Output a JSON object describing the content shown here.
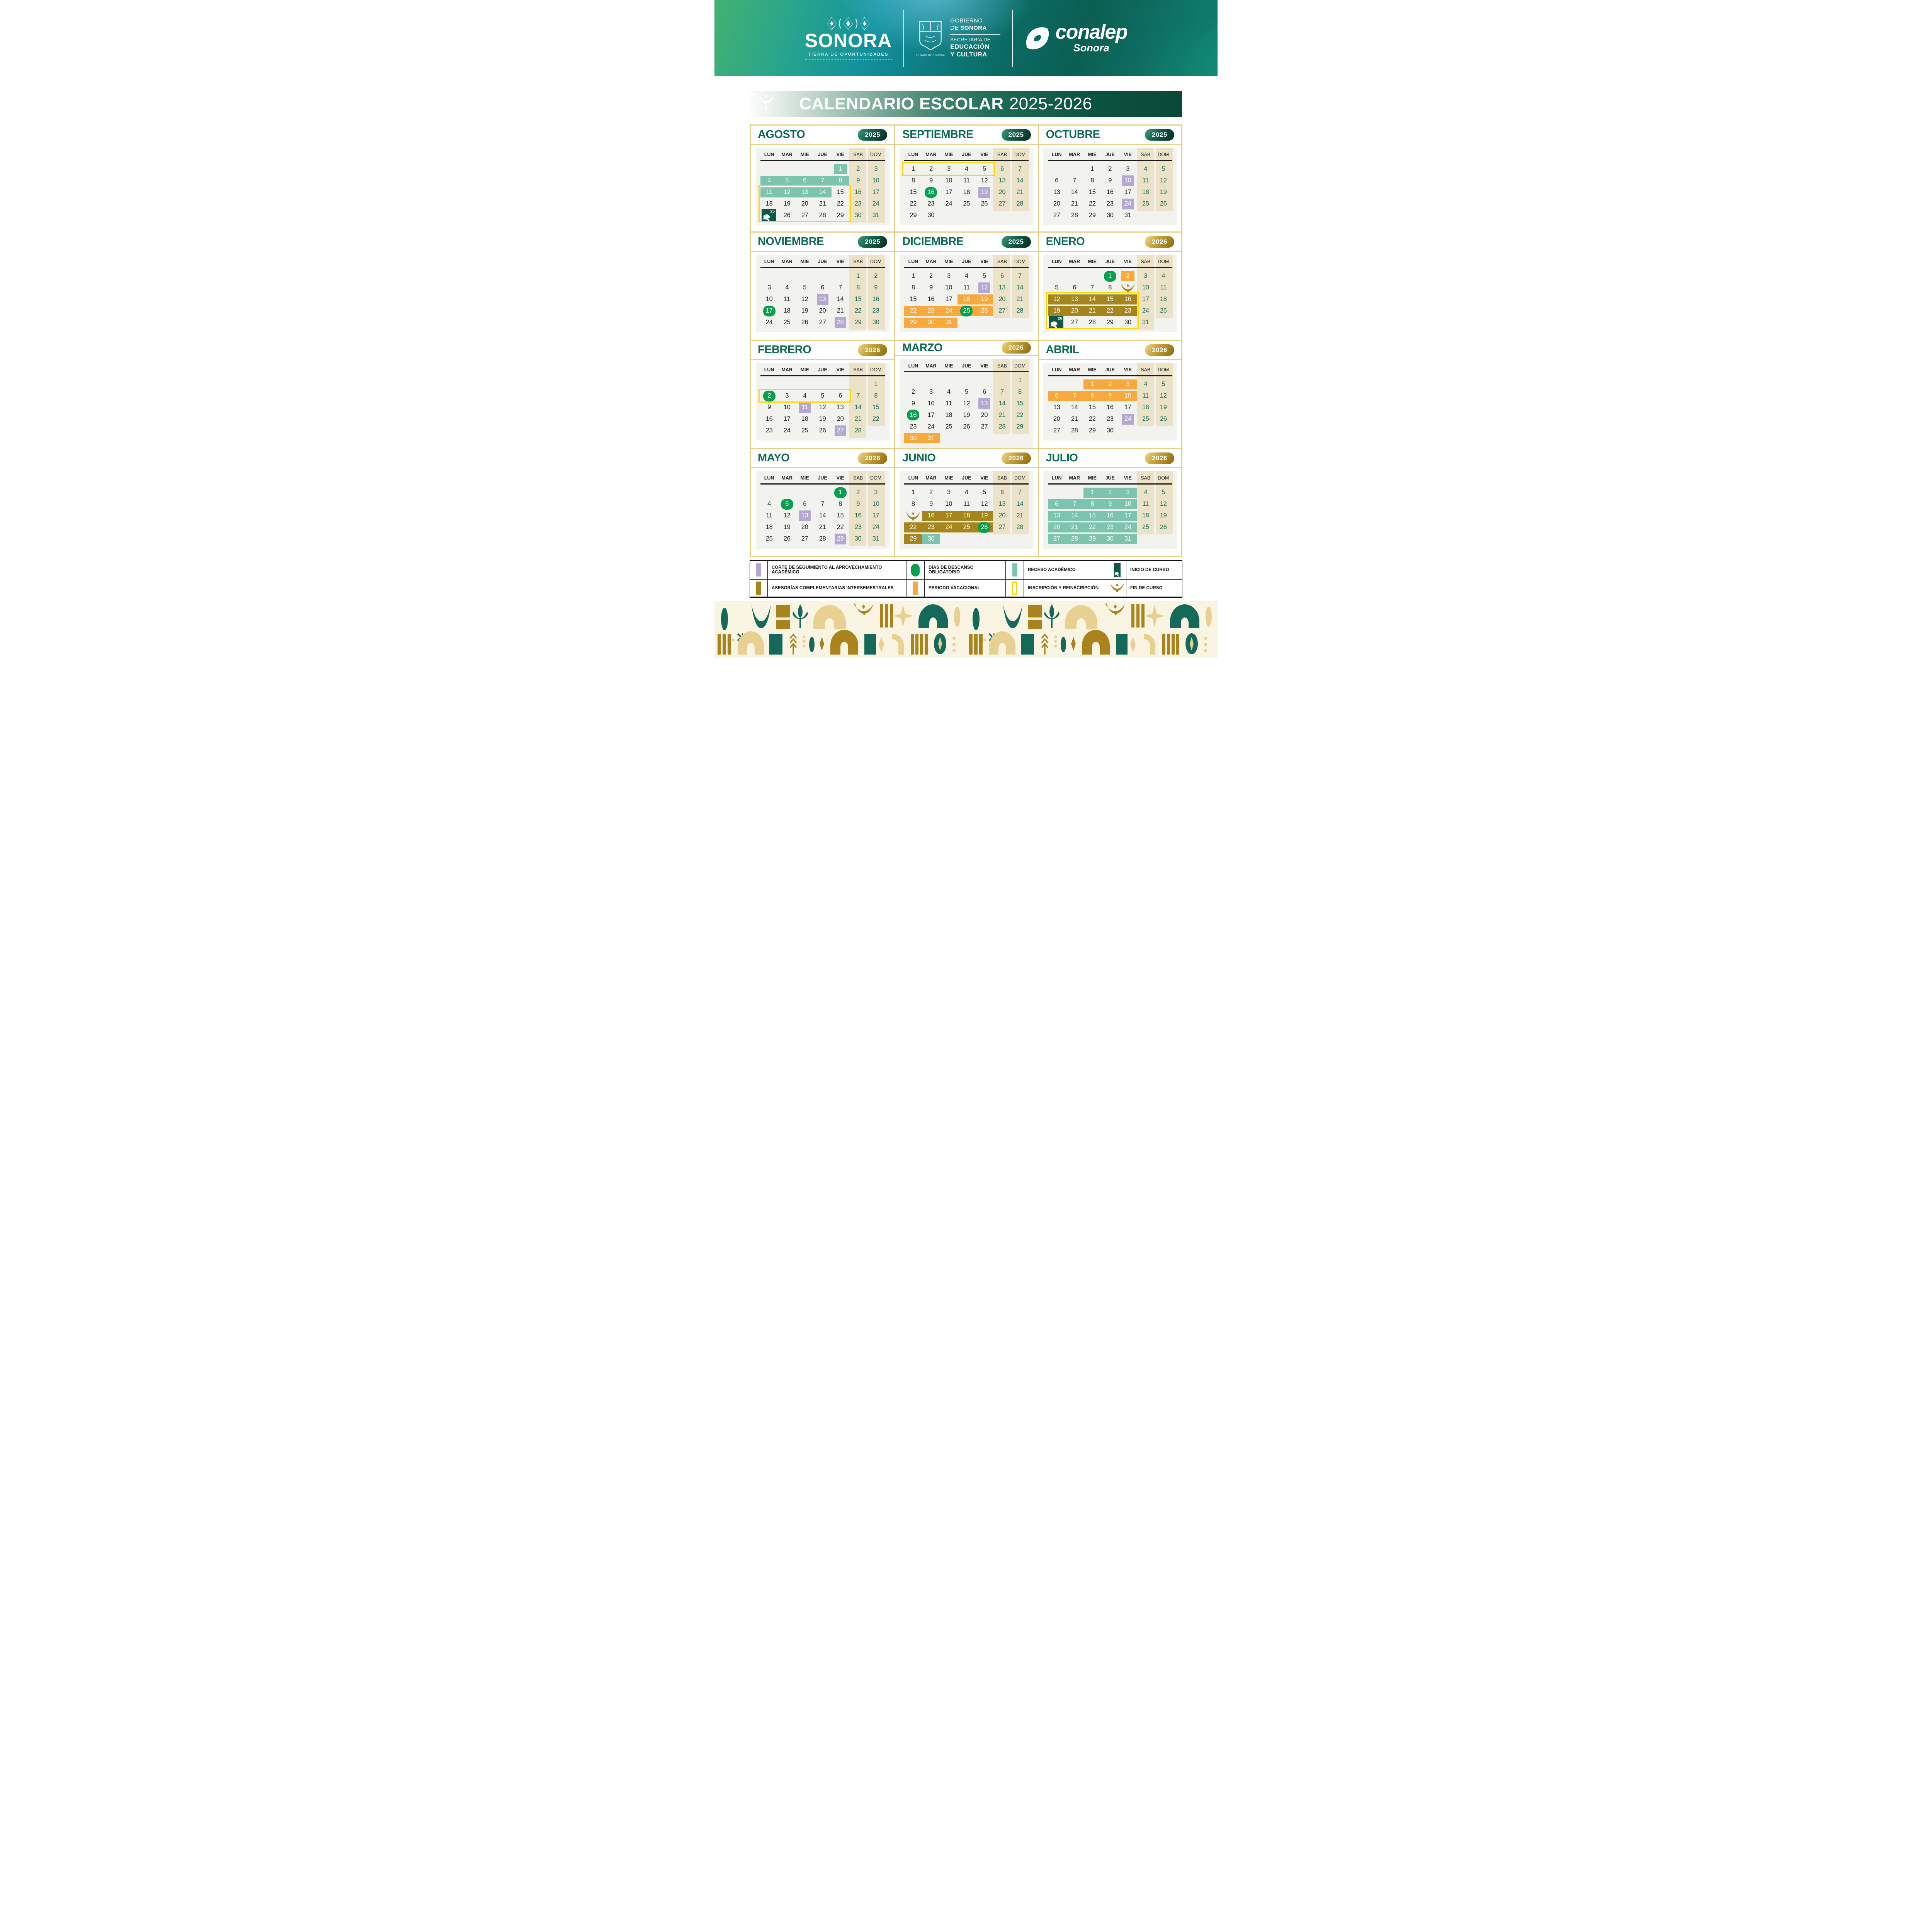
{
  "brand": {
    "sonora_title": "SONORA",
    "sonora_tagline_light": "TIERRA DE ",
    "sonora_tagline_bold": "OPORTUNIDADES",
    "gov_line1": "GOBIERNO",
    "gov_line2_light": "DE ",
    "gov_line2_bold": "SONORA",
    "gov_line3": "SECRETARÍA DE",
    "gov_line4": "EDUCACIÓN",
    "gov_line5": "Y CULTURA",
    "seal_caption": "ESTADO DE SONORA",
    "conalep": "conalep",
    "conalep_sub": "Sonora"
  },
  "banner": {
    "title": "CALENDARIO ESCOLAR",
    "years": "2025-2026"
  },
  "weekdays": [
    "LUN",
    "MAR",
    "MIE",
    "JUE",
    "VIE",
    "SAB",
    "DOM"
  ],
  "colors": {
    "teal": "#7cc4ad",
    "orange": "#f7a93d",
    "gold": "#a5851c",
    "purple": "#b5a7d4",
    "pill_green": "#0a9e4f",
    "inicio_green": "#0d5848",
    "yellow": "#ffd60a",
    "weekend_text": "#17705a",
    "month_title": "#0b6b53",
    "stripe": "#ebe2c8",
    "panel": "#f2f2ef",
    "frame": "#e6d089"
  },
  "months": [
    {
      "name": "AGOSTO",
      "year": "2025",
      "badge": "green",
      "ybox": {
        "from": 2,
        "to": 4
      },
      "weeks": [
        [
          "",
          "",
          "",
          "",
          "1*To",
          "2",
          "3"
        ],
        [
          "4*Ts",
          "5*Tm",
          "6*Tm",
          "7*Tm",
          "8*Te",
          "9",
          "10"
        ],
        [
          "11*Ts",
          "12*Tm",
          "13*Tm",
          "14*Te",
          "15",
          "16",
          "17"
        ],
        [
          "18",
          "19",
          "20",
          "21",
          "22",
          "23",
          "24"
        ],
        [
          "25*I",
          "26",
          "27",
          "28",
          "29",
          "30",
          "31"
        ]
      ]
    },
    {
      "name": "SEPTIEMBRE",
      "year": "2025",
      "badge": "green",
      "ybox": {
        "from": 0,
        "to": 0
      },
      "weeks": [
        [
          "1",
          "2",
          "3",
          "4",
          "5",
          "6",
          "7"
        ],
        [
          "8",
          "9",
          "10",
          "11",
          "12",
          "13",
          "14"
        ],
        [
          "15",
          "16*D",
          "17",
          "18",
          "19*P",
          "20",
          "21"
        ],
        [
          "22",
          "23",
          "24",
          "25",
          "26",
          "27",
          "28"
        ],
        [
          "29",
          "30",
          "",
          "",
          "",
          "",
          ""
        ]
      ]
    },
    {
      "name": "OCTUBRE",
      "year": "2025",
      "badge": "green",
      "weeks": [
        [
          "",
          "",
          "1",
          "2",
          "3",
          "4",
          "5"
        ],
        [
          "6",
          "7",
          "8",
          "9",
          "10*P",
          "11",
          "12"
        ],
        [
          "13",
          "14",
          "15",
          "16",
          "17",
          "18",
          "19"
        ],
        [
          "20",
          "21",
          "22",
          "23",
          "24*P",
          "25",
          "26"
        ],
        [
          "27",
          "28",
          "29",
          "30",
          "31",
          "",
          ""
        ]
      ]
    },
    {
      "name": "NOVIEMBRE",
      "year": "2025",
      "badge": "green",
      "weeks": [
        [
          "",
          "",
          "",
          "",
          "",
          "1",
          "2"
        ],
        [
          "3",
          "4",
          "5",
          "6",
          "7",
          "8",
          "9"
        ],
        [
          "10",
          "11",
          "12",
          "13*P",
          "14",
          "15",
          "16"
        ],
        [
          "17*D",
          "18",
          "19",
          "20",
          "21",
          "22",
          "23"
        ],
        [
          "24",
          "25",
          "26",
          "27",
          "28*P",
          "29",
          "30"
        ]
      ]
    },
    {
      "name": "DICIEMBRE",
      "year": "2025",
      "badge": "green",
      "weeks": [
        [
          "1",
          "2",
          "3",
          "4",
          "5",
          "6",
          "7"
        ],
        [
          "8",
          "9",
          "10",
          "11",
          "12*P",
          "13",
          "14"
        ],
        [
          "15",
          "16",
          "17",
          "18*Os",
          "19*Oe",
          "20",
          "21"
        ],
        [
          "22*Os",
          "23*Om",
          "24*Om",
          "25*OmD",
          "26*Oe",
          "27",
          "28"
        ],
        [
          "29*Os",
          "30*Om",
          "31*Oe",
          "",
          "",
          "",
          ""
        ]
      ]
    },
    {
      "name": "ENERO",
      "year": "2026",
      "badge": "gold",
      "ybox": {
        "from": 2,
        "to": 4
      },
      "weeks": [
        [
          "",
          "",
          "",
          "1*D",
          "2*Oo",
          "3",
          "4"
        ],
        [
          "5",
          "6",
          "7",
          "8",
          "*F",
          "10",
          "11"
        ],
        [
          "12*Gs",
          "13*Gm",
          "14*Gm",
          "15*Gm",
          "16*Ge",
          "17",
          "18"
        ],
        [
          "19*Gs",
          "20*Gm",
          "21*Gm",
          "22*Gm",
          "23*Ge",
          "24",
          "25"
        ],
        [
          "26*I",
          "27",
          "28",
          "29",
          "30",
          "31",
          ""
        ]
      ]
    },
    {
      "name": "FEBRERO",
      "year": "2026",
      "badge": "gold",
      "ybox": {
        "from": 1,
        "to": 1
      },
      "weeks": [
        [
          "",
          "",
          "",
          "",
          "",
          "",
          "1"
        ],
        [
          "2*D",
          "3",
          "4",
          "5",
          "6",
          "7",
          "8"
        ],
        [
          "9",
          "10",
          "11*P",
          "12",
          "13",
          "14",
          "15"
        ],
        [
          "16",
          "17",
          "18",
          "19",
          "20",
          "21",
          "22"
        ],
        [
          "23",
          "24",
          "25",
          "26",
          "27*P",
          "28",
          ""
        ]
      ]
    },
    {
      "name": "MARZO",
      "year": "2026",
      "badge": "gold",
      "weeks": [
        [
          "",
          "",
          "",
          "",
          "",
          "",
          "1"
        ],
        [
          "2",
          "3",
          "4",
          "5",
          "6",
          "7",
          "8"
        ],
        [
          "9",
          "10",
          "11",
          "12",
          "13*P",
          "14",
          "15"
        ],
        [
          "16*D",
          "17",
          "18",
          "19",
          "20",
          "21",
          "22"
        ],
        [
          "23",
          "24",
          "25",
          "26",
          "27",
          "28",
          "29"
        ],
        [
          "30*Os",
          "31*Oe",
          "",
          "",
          "",
          "",
          ""
        ]
      ]
    },
    {
      "name": "ABRIL",
      "year": "2026",
      "badge": "gold",
      "weeks": [
        [
          "",
          "",
          "1*Os",
          "2*Om",
          "3*Oe",
          "4",
          "5"
        ],
        [
          "6*Os",
          "7*Om",
          "8*Om",
          "9*Om",
          "10*Oe",
          "11",
          "12"
        ],
        [
          "13",
          "14",
          "15",
          "16",
          "17",
          "18",
          "19"
        ],
        [
          "20",
          "21",
          "22",
          "23",
          "24*P",
          "25",
          "26"
        ],
        [
          "27",
          "28",
          "29",
          "30",
          "",
          "",
          ""
        ]
      ]
    },
    {
      "name": "MAYO",
      "year": "2026",
      "badge": "gold",
      "weeks": [
        [
          "",
          "",
          "",
          "",
          "1*D",
          "2",
          "3"
        ],
        [
          "4",
          "5*D",
          "6",
          "7",
          "8",
          "9",
          "10"
        ],
        [
          "11",
          "12",
          "13*P",
          "14",
          "15",
          "16",
          "17"
        ],
        [
          "18",
          "19",
          "20",
          "21",
          "22",
          "23",
          "24"
        ],
        [
          "25",
          "26",
          "27",
          "28",
          "29*P",
          "30",
          "31"
        ]
      ]
    },
    {
      "name": "JUNIO",
      "year": "2026",
      "badge": "gold",
      "weeks": [
        [
          "1",
          "2",
          "3",
          "4",
          "5",
          "6",
          "7"
        ],
        [
          "8",
          "9",
          "10",
          "11",
          "12",
          "13",
          "14"
        ],
        [
          "*F",
          "16*Gs",
          "17*Gm",
          "18*Gm",
          "19*Ge",
          "20",
          "21"
        ],
        [
          "22*Gs",
          "23*Gm",
          "24*Gm",
          "25*Gm",
          "26*GeD",
          "27",
          "28"
        ],
        [
          "29*Gs",
          "30*Te",
          "",
          "",
          "",
          "",
          ""
        ]
      ]
    },
    {
      "name": "JULIO",
      "year": "2026",
      "badge": "gold",
      "weeks": [
        [
          "",
          "",
          "1*Ts",
          "2*Tm",
          "3*Te",
          "4",
          "5"
        ],
        [
          "6*Ts",
          "7*Tm",
          "8*Tm",
          "9*Tm",
          "10*Te",
          "11",
          "12"
        ],
        [
          "13*Ts",
          "14*Tm",
          "15*Tm",
          "16*Tm",
          "17*Te",
          "18",
          "19"
        ],
        [
          "20*Ts",
          "21*Tm",
          "22*Tm",
          "23*Tm",
          "24*Te",
          "25",
          "26"
        ],
        [
          "27*Ts",
          "28*Tm",
          "29*Tm",
          "30*Tm",
          "31*Te",
          "",
          ""
        ]
      ]
    }
  ],
  "legend": {
    "rows": [
      [
        {
          "type": "purple",
          "label": "CORTE DE SEGUIMIENTO AL APROVECHAMIENTO ACADÉMICO"
        },
        {
          "type": "pill",
          "label": "DÍAS DE DESCANSO OBLIGATORIO"
        },
        {
          "type": "teal",
          "label": "RECESO ACADÉMICO"
        },
        {
          "type": "inicio",
          "label": "INICIO DE CURSO"
        }
      ],
      [
        {
          "type": "gold",
          "label": "ASESORÍAS COMPLEMENTARIAS INTERSEMESTRALES"
        },
        {
          "type": "orange",
          "label": "PERIODO VACACIONAL"
        },
        {
          "type": "yellow",
          "label": "INSCRIPCIÓN Y REINSCRIPCIÓN"
        },
        {
          "type": "fin",
          "label": "FIN DE CURSO"
        }
      ]
    ]
  }
}
